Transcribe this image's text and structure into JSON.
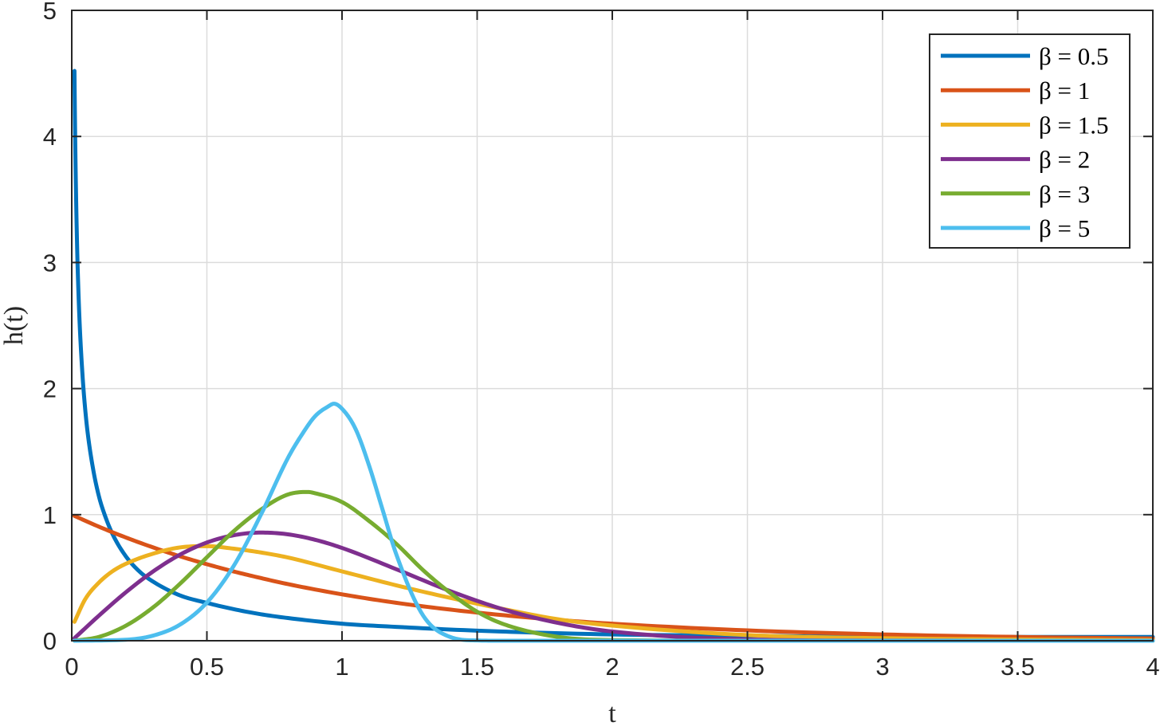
{
  "chart_data": {
    "type": "line",
    "title": "",
    "xlabel": "t",
    "ylabel": "h(t)",
    "xlim": [
      0,
      4
    ],
    "ylim": [
      0,
      5
    ],
    "xticks": [
      0,
      0.5,
      1,
      1.5,
      2,
      2.5,
      3,
      3.5,
      4
    ],
    "xtick_labels": [
      "0",
      "0.5",
      "1",
      "1.5",
      "2",
      "2.5",
      "3",
      "3.5",
      "4"
    ],
    "yticks": [
      0,
      1,
      2,
      3,
      4,
      5
    ],
    "ytick_labels": [
      "0",
      "1",
      "2",
      "3",
      "4",
      "5"
    ],
    "grid": true,
    "legend_position": "top-right",
    "series": [
      {
        "name": "β = 0.5",
        "color": "#0072BD",
        "x": [
          0.01,
          0.012,
          0.015,
          0.02,
          0.025,
          0.03,
          0.04,
          0.05,
          0.06,
          0.08,
          0.1,
          0.12,
          0.15,
          0.2,
          0.25,
          0.3,
          0.4,
          0.5,
          0.6,
          0.7,
          0.8,
          1.0,
          1.2,
          1.5,
          2.0,
          2.5,
          3.0,
          3.5,
          4.0
        ],
        "y": [
          4.52,
          4.11,
          3.65,
          3.11,
          2.75,
          2.48,
          2.1,
          1.83,
          1.63,
          1.35,
          1.15,
          1.01,
          0.85,
          0.67,
          0.55,
          0.47,
          0.36,
          0.3,
          0.25,
          0.21,
          0.18,
          0.135,
          0.11,
          0.08,
          0.05,
          0.04,
          0.03,
          0.03,
          0.03
        ]
      },
      {
        "name": "β = 1",
        "color": "#D95319",
        "x": [
          0.01,
          0.1,
          0.2,
          0.3,
          0.4,
          0.5,
          0.6,
          0.7,
          0.8,
          1.0,
          1.2,
          1.4,
          1.6,
          1.8,
          2.0,
          2.5,
          3.0,
          3.5,
          4.0
        ],
        "y": [
          0.99,
          0.905,
          0.819,
          0.741,
          0.67,
          0.607,
          0.549,
          0.497,
          0.449,
          0.368,
          0.301,
          0.247,
          0.202,
          0.165,
          0.135,
          0.082,
          0.05,
          0.03,
          0.018
        ]
      },
      {
        "name": "β = 1.5",
        "color": "#EDB120",
        "x": [
          0.01,
          0.05,
          0.1,
          0.15,
          0.2,
          0.3,
          0.4,
          0.5,
          0.6,
          0.7,
          0.8,
          1.0,
          1.2,
          1.4,
          1.6,
          1.8,
          2.0,
          2.5,
          3.0,
          3.5,
          4.0
        ],
        "y": [
          0.15,
          0.33,
          0.46,
          0.55,
          0.61,
          0.69,
          0.74,
          0.75,
          0.73,
          0.7,
          0.66,
          0.55,
          0.44,
          0.34,
          0.25,
          0.17,
          0.12,
          0.045,
          0.02,
          0.01,
          0.005
        ]
      },
      {
        "name": "β = 2",
        "color": "#7E2F8E",
        "x": [
          0.01,
          0.1,
          0.2,
          0.3,
          0.4,
          0.5,
          0.6,
          0.7,
          0.8,
          0.9,
          1.0,
          1.2,
          1.4,
          1.6,
          1.8,
          2.0,
          2.5,
          3.0,
          4.0
        ],
        "y": [
          0.02,
          0.198,
          0.384,
          0.548,
          0.682,
          0.779,
          0.837,
          0.858,
          0.844,
          0.801,
          0.736,
          0.568,
          0.394,
          0.247,
          0.141,
          0.073,
          0.01,
          0.001,
          0.0
        ]
      },
      {
        "name": "β = 3",
        "color": "#77AC30",
        "x": [
          0.01,
          0.1,
          0.2,
          0.3,
          0.4,
          0.5,
          0.6,
          0.7,
          0.8,
          0.873,
          0.9,
          1.0,
          1.1,
          1.2,
          1.3,
          1.4,
          1.5,
          1.6,
          1.8,
          2.0,
          2.5,
          4.0
        ],
        "y": [
          0.0,
          0.03,
          0.119,
          0.263,
          0.451,
          0.662,
          0.87,
          1.04,
          1.16,
          1.18,
          1.17,
          1.1,
          0.95,
          0.77,
          0.56,
          0.38,
          0.23,
          0.13,
          0.03,
          0.005,
          0.0,
          0.0
        ]
      },
      {
        "name": "β = 5",
        "color": "#4DBEEE",
        "x": [
          0.01,
          0.2,
          0.3,
          0.4,
          0.5,
          0.6,
          0.7,
          0.8,
          0.85,
          0.9,
          0.95,
          0.97,
          1.0,
          1.05,
          1.1,
          1.15,
          1.2,
          1.3,
          1.4,
          1.5,
          1.6,
          1.8,
          4.0
        ],
        "y": [
          0.0,
          0.008,
          0.04,
          0.127,
          0.303,
          0.596,
          1.0,
          1.45,
          1.63,
          1.78,
          1.86,
          1.88,
          1.84,
          1.68,
          1.39,
          1.04,
          0.69,
          0.2,
          0.03,
          0.002,
          0.0,
          0.0,
          0.0
        ]
      }
    ]
  }
}
